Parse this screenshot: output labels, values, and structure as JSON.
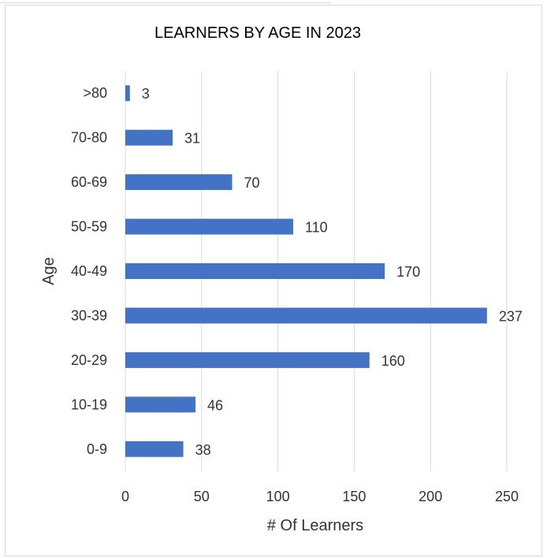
{
  "chart_data": {
    "type": "bar",
    "orientation": "horizontal",
    "title": "LEARNERS BY AGE IN 2023",
    "xlabel": "# Of Learners",
    "ylabel": "Age",
    "categories": [
      "0-9",
      "10-19",
      "20-29",
      "30-39",
      "40-49",
      "50-59",
      "60-69",
      "70-80",
      ">80"
    ],
    "values": [
      38,
      46,
      160,
      237,
      170,
      110,
      70,
      31,
      3
    ],
    "xlim": [
      0,
      250
    ],
    "xticks": [
      0,
      50,
      100,
      150,
      200,
      250
    ],
    "grid": true,
    "legend": "none",
    "bar_color": "#4472c4",
    "grid_color": "#d9d9d9"
  }
}
